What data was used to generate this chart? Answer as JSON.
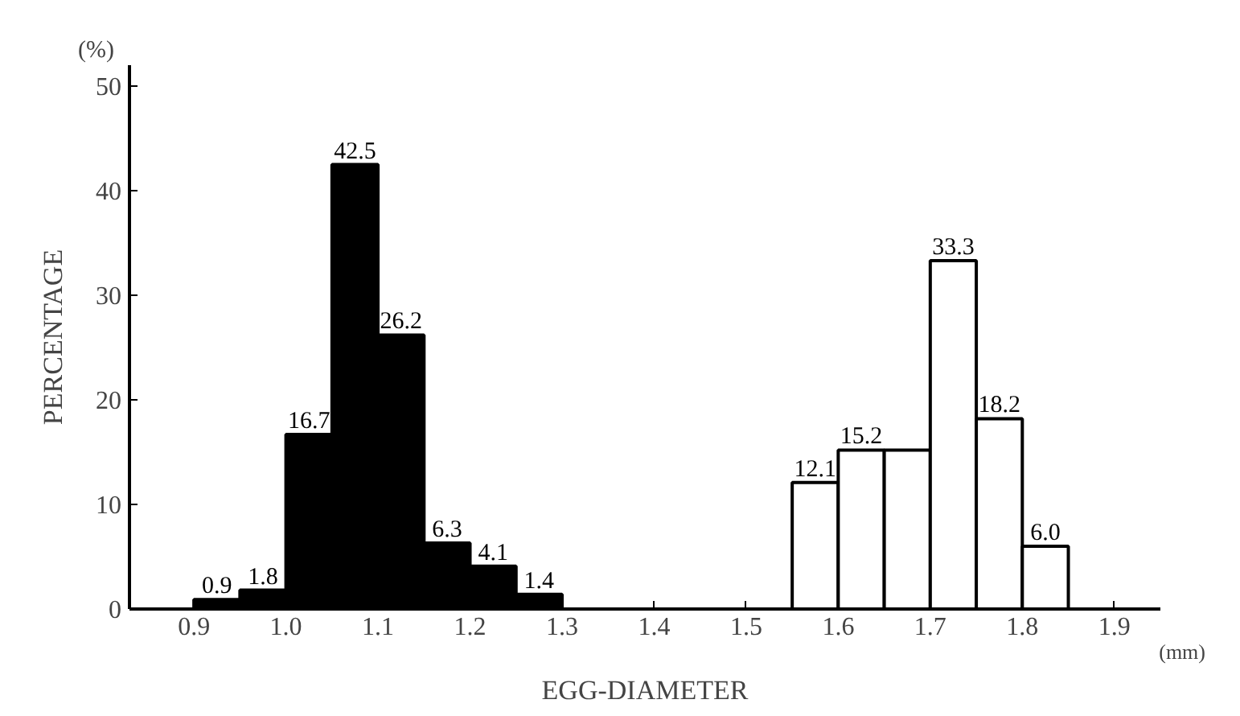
{
  "chart_data": {
    "type": "histogram",
    "xlabel": "EGG-DIAMETER",
    "ylabel": "PERCENTAGE",
    "annotations": [
      "(%)",
      "(mm)"
    ],
    "xlim": [
      0.83,
      1.95
    ],
    "ylim": [
      0,
      52
    ],
    "xticks": [
      0.9,
      {
        "value": 1.0,
        "label": "1.0"
      },
      1.1,
      1.2,
      1.3,
      1.4,
      1.5,
      1.6,
      1.7,
      1.8,
      1.9
    ],
    "yticks": [
      0,
      10,
      20,
      30,
      40,
      50
    ],
    "grid": false,
    "bins": [
      0.9,
      0.95,
      1.0,
      1.05,
      1.1,
      1.15,
      1.2,
      1.25,
      1.3,
      1.35,
      1.4,
      1.45,
      1.5,
      1.55,
      1.6,
      1.65,
      1.7,
      1.75,
      1.8,
      1.85
    ],
    "values": [
      0.9,
      1.8,
      16.7,
      42.5,
      26.2,
      6.3,
      4.1,
      1.4,
      null,
      null,
      null,
      null,
      null,
      12.1,
      15.2,
      15.2,
      33.3,
      18.2,
      6.0
    ],
    "colors": [
      "#000000",
      "#000000",
      "#000000",
      "#000000",
      "#000000",
      "#000000",
      "#000000",
      "#000000",
      null,
      null,
      null,
      null,
      null,
      "#ffffff",
      "#ffffff",
      "#ffffff",
      "#ffffff",
      "#ffffff",
      "#ffffff"
    ],
    "value_labels": [
      "0.9",
      "1.8",
      "16.7",
      "42.5",
      "26.2",
      "6.3",
      "4.1",
      "1.4",
      null,
      null,
      null,
      null,
      null,
      "12.1",
      "15.2",
      null,
      "33.3",
      "18.2",
      "6.0"
    ]
  }
}
